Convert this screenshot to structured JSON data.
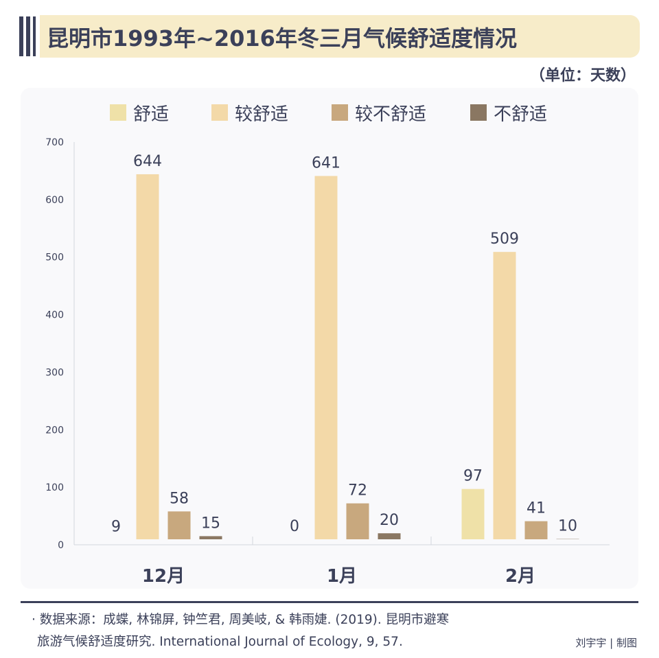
{
  "header": {
    "title": "昆明市1993年~2016年冬三月气候舒适度情况",
    "unit": "（单位：天数）"
  },
  "colors": {
    "title_bg": "#f7ecc9",
    "title_text": "#3b4059",
    "panel_bg": "#f9f9fb"
  },
  "chart_data": {
    "type": "bar",
    "categories": [
      "12月",
      "1月",
      "2月"
    ],
    "series": [
      {
        "name": "舒适",
        "color": "#efe1a8",
        "values": [
          9,
          0,
          97
        ]
      },
      {
        "name": "较舒适",
        "color": "#f3d9a8",
        "values": [
          644,
          641,
          509
        ]
      },
      {
        "name": "较不舒适",
        "color": "#c8a87e",
        "values": [
          58,
          72,
          41
        ]
      },
      {
        "name": "不舒适",
        "color": "#8a7762",
        "values": [
          15,
          20,
          10
        ]
      }
    ],
    "y_ticks": [
      "0",
      "100",
      "200",
      "300",
      "400",
      "500",
      "600",
      "700"
    ],
    "ylim": [
      0,
      700
    ],
    "legend_position": "top",
    "grid": false
  },
  "footer": {
    "source_line1": "· 数据来源：成蝶, 林锦屏, 钟竺君, 周美岐, & 韩雨婕. (2019). 昆明市避寒",
    "source_line2": "旅游气候舒适度研究. International Journal of Ecology, 9, 57.",
    "credit": "刘宇宇 | 制图"
  }
}
